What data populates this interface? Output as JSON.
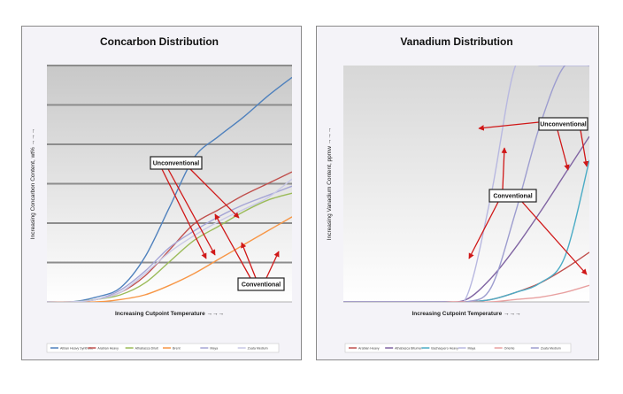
{
  "chart_data": [
    {
      "type": "line",
      "title": "Concarbon Distribution",
      "xlabel": "Increasing Cutpoint Temperature →→→",
      "ylabel": "Increasing Concarbon Content, wt% →→→",
      "xlim": [
        0,
        100
      ],
      "ylim": [
        0,
        100
      ],
      "grid": true,
      "legend_position": "bottom",
      "x": [
        0,
        10,
        20,
        30,
        40,
        50,
        60,
        70,
        80,
        90,
        100
      ],
      "series": [
        {
          "name": "Albian Heavy Synthetic",
          "color": "#4f81bd",
          "values": [
            0,
            0,
            2,
            6,
            19,
            40,
            61,
            70,
            78,
            87,
            95
          ]
        },
        {
          "name": "Arabian Heavy",
          "color": "#c0504d",
          "values": [
            0,
            0,
            1,
            4,
            11,
            22,
            33,
            39,
            45,
            50,
            55
          ]
        },
        {
          "name": "Athabasca Diluit",
          "color": "#9bbb59",
          "values": [
            0,
            0,
            1,
            3,
            8,
            17,
            26,
            32,
            38,
            43,
            46
          ]
        },
        {
          "name": "Brent",
          "color": "#f79646",
          "values": [
            0,
            0,
            0,
            1,
            3,
            7,
            12,
            18,
            24,
            30,
            36
          ]
        },
        {
          "name": "Maya",
          "color": "#a5a5d6",
          "values": [
            0,
            0,
            1,
            5,
            13,
            23,
            30,
            36,
            41,
            45,
            49
          ]
        },
        {
          "name": "Zuata Medium",
          "color": "#c9c9e6",
          "values": [
            0,
            0,
            1,
            4,
            12,
            21,
            28,
            34,
            39,
            44,
            52
          ]
        }
      ],
      "annotations": {
        "unconventional": "Unconventional",
        "conventional": "Conventional"
      }
    },
    {
      "type": "line",
      "title": "Vanadium Distribution",
      "xlabel": "Increasing Cutpoint Temperature →→→",
      "ylabel": "Increasing Vanadium Content, ppmw →→→",
      "xlim": [
        0,
        100
      ],
      "ylim": [
        0,
        100
      ],
      "grid": false,
      "legend_position": "bottom",
      "x": [
        0,
        10,
        20,
        30,
        40,
        50,
        60,
        70,
        80,
        90,
        100
      ],
      "series": [
        {
          "name": "Arabian Heavy",
          "color": "#c0504d",
          "values": [
            0,
            0,
            0,
            0,
            0,
            0,
            1,
            4,
            8,
            14,
            21
          ]
        },
        {
          "name": "Athabasca Bitumen",
          "color": "#8064a2",
          "values": [
            0,
            0,
            0,
            0,
            0,
            1,
            10,
            23,
            38,
            54,
            70
          ]
        },
        {
          "name": "Bachaquero Heavy",
          "color": "#4bacc6",
          "values": [
            0,
            0,
            0,
            0,
            0,
            0,
            1,
            4,
            8,
            19,
            60
          ]
        },
        {
          "name": "Maya",
          "color": "#b8b8e0",
          "values": [
            0,
            0,
            0,
            0,
            0,
            2,
            45,
            100,
            100,
            100,
            100
          ]
        },
        {
          "name": "Oriente",
          "color": "#e8a0a0",
          "values": [
            0,
            0,
            0,
            0,
            0,
            0,
            0,
            1,
            2,
            4,
            7
          ]
        },
        {
          "name": "Zuata Medium",
          "color": "#9d9dcf",
          "values": [
            0,
            0,
            0,
            0,
            0,
            0,
            6,
            38,
            75,
            100,
            100
          ]
        }
      ],
      "annotations": {
        "unconventional": "Unconventional",
        "conventional": "Conventional"
      }
    }
  ]
}
